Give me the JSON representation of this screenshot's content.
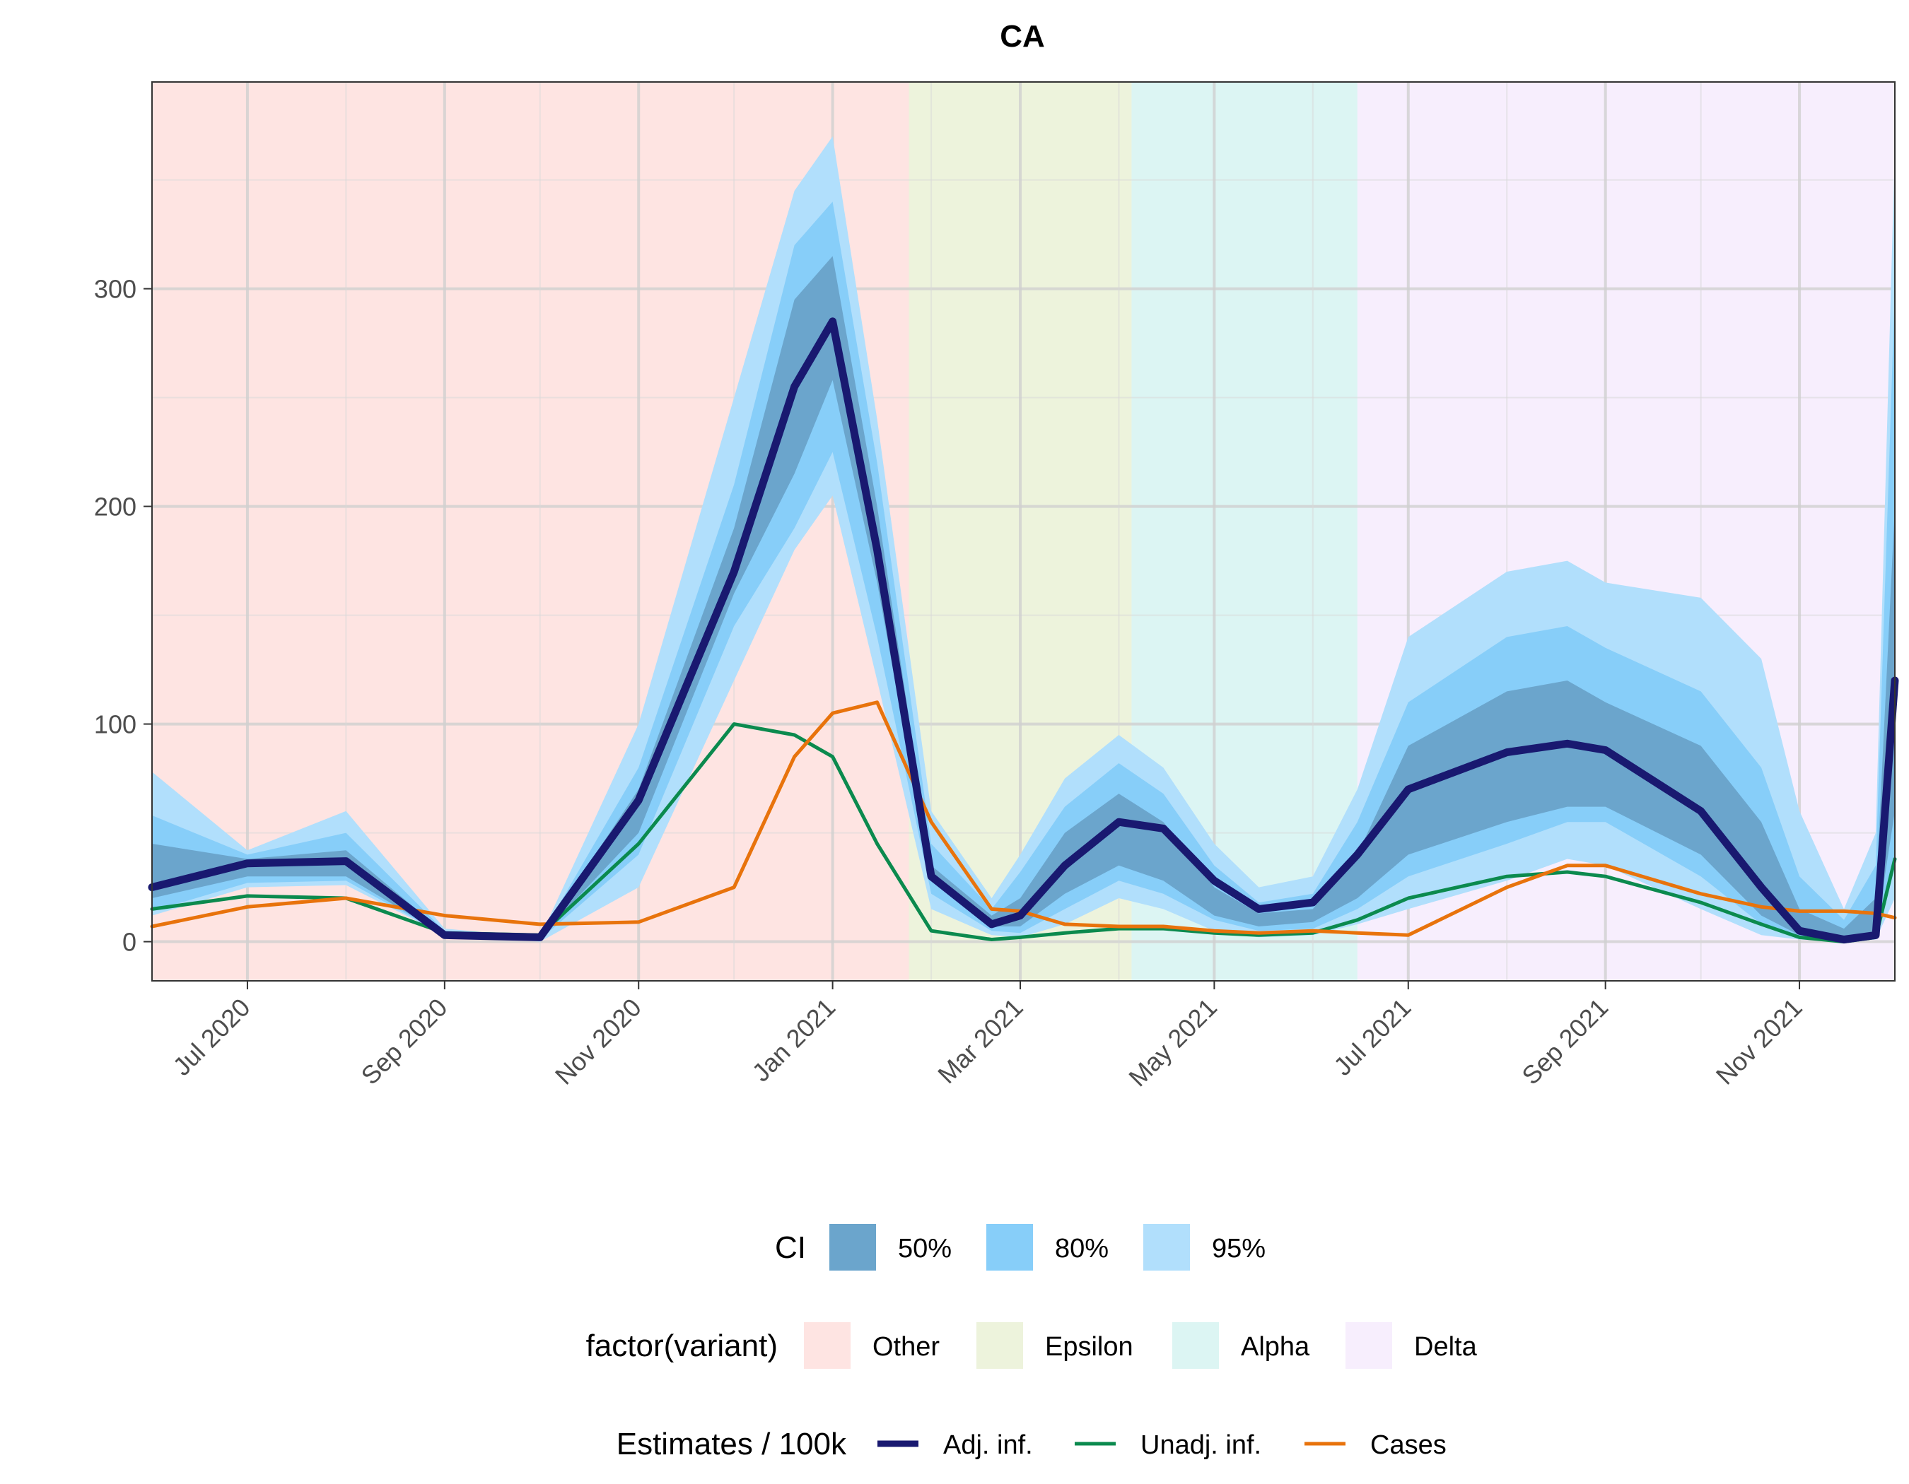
{
  "chart_data": {
    "type": "area",
    "title": "CA",
    "xlabel": "",
    "ylabel": "",
    "ylim": [
      -18,
      395
    ],
    "xlim": [
      "2020-06-01",
      "2021-12-01"
    ],
    "yticks": [
      0,
      100,
      200,
      300
    ],
    "xticks": [
      {
        "date": "2020-07-01",
        "label": "Jul 2020"
      },
      {
        "date": "2020-09-01",
        "label": "Sep 2020"
      },
      {
        "date": "2020-11-01",
        "label": "Nov 2020"
      },
      {
        "date": "2021-01-01",
        "label": "Jan 2021"
      },
      {
        "date": "2021-03-01",
        "label": "Mar 2021"
      },
      {
        "date": "2021-05-01",
        "label": "May 2021"
      },
      {
        "date": "2021-07-01",
        "label": "Jul 2021"
      },
      {
        "date": "2021-09-01",
        "label": "Sep 2021"
      },
      {
        "date": "2021-11-01",
        "label": "Nov 2021"
      }
    ],
    "grid": true,
    "variant_periods": [
      {
        "variant": "Other",
        "start": "2020-06-01",
        "end": "2021-01-25",
        "color": "#F8766D"
      },
      {
        "variant": "Epsilon",
        "start": "2021-01-25",
        "end": "2021-04-05",
        "color": "#A3C14E"
      },
      {
        "variant": "Alpha",
        "start": "2021-04-05",
        "end": "2021-06-15",
        "color": "#4FCBC5"
      },
      {
        "variant": "Delta",
        "start": "2021-06-15",
        "end": "2021-12-01",
        "color": "#D9A8F7"
      }
    ],
    "dates": [
      "2020-06-01",
      "2020-07-01",
      "2020-08-01",
      "2020-09-01",
      "2020-10-01",
      "2020-11-01",
      "2020-12-01",
      "2020-12-20",
      "2021-01-01",
      "2021-01-15",
      "2021-02-01",
      "2021-02-20",
      "2021-03-01",
      "2021-03-15",
      "2021-04-01",
      "2021-04-15",
      "2021-05-01",
      "2021-05-15",
      "2021-06-01",
      "2021-06-15",
      "2021-07-01",
      "2021-08-01",
      "2021-08-20",
      "2021-09-01",
      "2021-10-01",
      "2021-10-20",
      "2021-11-01",
      "2021-11-15",
      "2021-11-25",
      "2021-12-01"
    ],
    "ci_bands": [
      {
        "name": "95%",
        "color": "#B1DFFC",
        "lower": [
          12,
          25,
          26,
          3,
          0,
          25,
          120,
          180,
          205,
          120,
          15,
          3,
          2,
          8,
          20,
          15,
          5,
          2,
          3,
          8,
          15,
          28,
          38,
          35,
          15,
          3,
          1,
          0,
          1,
          20
        ],
        "upper": [
          78,
          42,
          60,
          6,
          2,
          100,
          250,
          345,
          370,
          240,
          60,
          20,
          40,
          75,
          95,
          80,
          45,
          25,
          30,
          70,
          140,
          170,
          175,
          165,
          158,
          130,
          60,
          15,
          50,
          365
        ]
      },
      {
        "name": "80%",
        "color": "#87CEF9",
        "lower": [
          14,
          27,
          28,
          3,
          1,
          40,
          145,
          190,
          225,
          140,
          22,
          5,
          4,
          15,
          28,
          22,
          10,
          5,
          6,
          15,
          30,
          45,
          55,
          55,
          30,
          8,
          2,
          1,
          2,
          40
        ],
        "upper": [
          58,
          40,
          50,
          5,
          2,
          80,
          210,
          320,
          340,
          220,
          45,
          15,
          32,
          62,
          82,
          68,
          35,
          18,
          22,
          55,
          110,
          140,
          145,
          135,
          115,
          80,
          30,
          10,
          35,
          300
        ]
      },
      {
        "name": "50%",
        "color": "#6BA5CC",
        "lower": [
          20,
          30,
          30,
          3,
          2,
          50,
          160,
          215,
          258,
          165,
          28,
          7,
          7,
          22,
          35,
          28,
          12,
          7,
          9,
          20,
          40,
          55,
          62,
          62,
          40,
          12,
          3,
          2,
          3,
          60
        ],
        "upper": [
          45,
          38,
          42,
          4,
          2,
          70,
          190,
          295,
          315,
          200,
          35,
          12,
          20,
          50,
          68,
          55,
          25,
          13,
          15,
          40,
          90,
          115,
          120,
          110,
          90,
          55,
          15,
          6,
          20,
          200
        ]
      }
    ],
    "series": [
      {
        "name": "Adj. inf.",
        "color": "#191970",
        "values": [
          25,
          36,
          37,
          3,
          2,
          65,
          170,
          255,
          285,
          180,
          30,
          8,
          12,
          35,
          55,
          52,
          28,
          15,
          18,
          40,
          70,
          87,
          91,
          88,
          60,
          25,
          5,
          1,
          3,
          120
        ]
      },
      {
        "name": "Unadj. inf.",
        "color": "#0B8A4E",
        "values": [
          15,
          21,
          20,
          4,
          3,
          45,
          100,
          95,
          85,
          45,
          5,
          1,
          2,
          4,
          6,
          6,
          4,
          3,
          4,
          10,
          20,
          30,
          32,
          30,
          18,
          8,
          2,
          0,
          2,
          38
        ]
      },
      {
        "name": "Cases",
        "color": "#E8730C",
        "values": [
          7,
          16,
          20,
          12,
          8,
          9,
          25,
          85,
          105,
          110,
          55,
          15,
          14,
          8,
          7,
          7,
          5,
          4,
          5,
          4,
          3,
          25,
          35,
          35,
          22,
          16,
          14,
          14,
          13,
          11
        ]
      }
    ]
  },
  "legend": {
    "ci_title": "CI",
    "ci_items": [
      {
        "label": "50%",
        "color": "#6BA5CC"
      },
      {
        "label": "80%",
        "color": "#87CEF9"
      },
      {
        "label": "95%",
        "color": "#B1DFFC"
      }
    ],
    "variant_title": "factor(variant)",
    "variant_items": [
      {
        "label": "Other",
        "color": "#F8766D"
      },
      {
        "label": "Epsilon",
        "color": "#A3C14E"
      },
      {
        "label": "Alpha",
        "color": "#4FCBC5"
      },
      {
        "label": "Delta",
        "color": "#D9A8F7"
      }
    ],
    "estimates_title": "Estimates / 100k",
    "estimates_items": [
      {
        "label": "Adj. inf.",
        "color": "#191970"
      },
      {
        "label": "Unadj. inf.",
        "color": "#0B8A4E"
      },
      {
        "label": "Cases",
        "color": "#E8730C"
      }
    ]
  }
}
